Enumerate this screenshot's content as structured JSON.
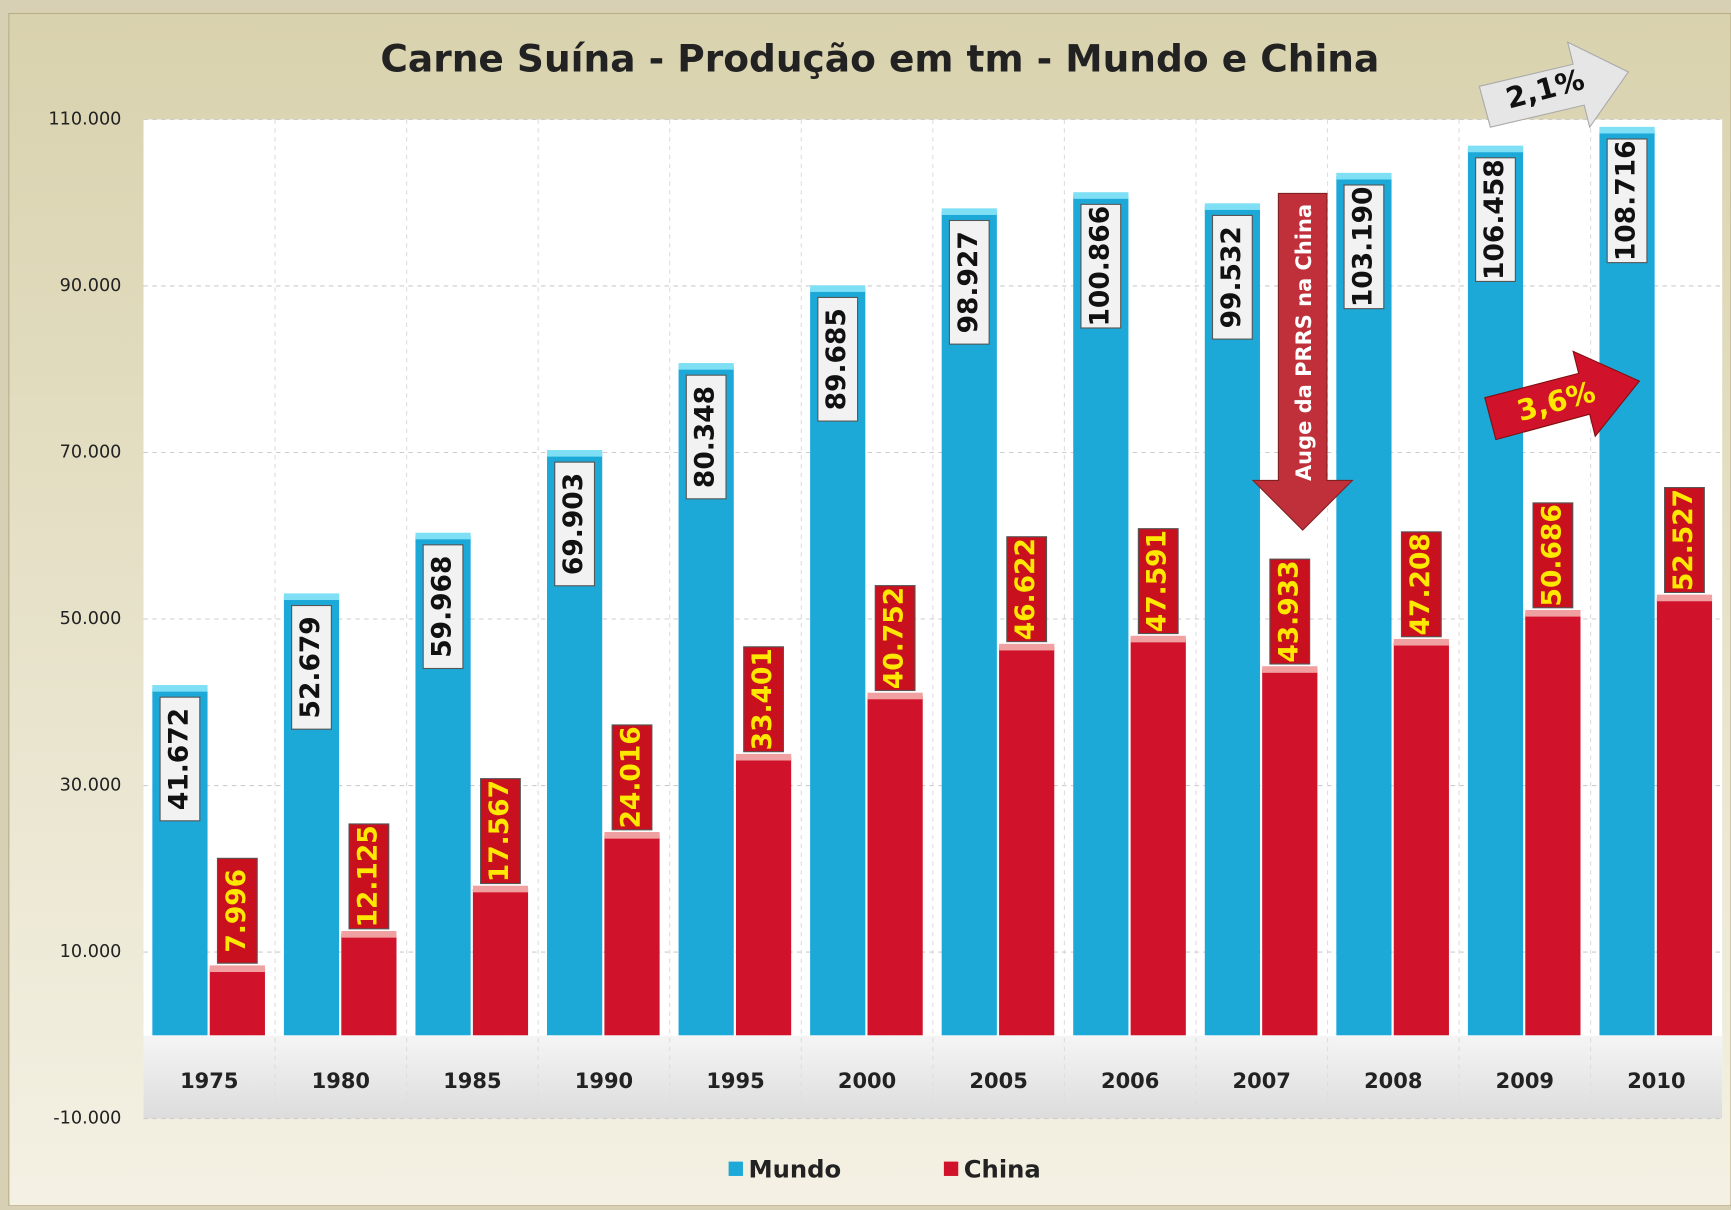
{
  "chart_data": {
    "type": "bar",
    "title": "Carne Suína - Produção em tm - Mundo e China",
    "categories": [
      "1975",
      "1980",
      "1985",
      "1990",
      "1995",
      "2000",
      "2005",
      "2006",
      "2007",
      "2008",
      "2009",
      "2010"
    ],
    "series": [
      {
        "name": "Mundo",
        "color": "#1ca9d8",
        "values": [
          41672,
          52679,
          59968,
          69903,
          80348,
          89685,
          98927,
          100866,
          99532,
          103190,
          106458,
          108716
        ],
        "value_labels": [
          "41.672",
          "52.679",
          "59.968",
          "69.903",
          "80.348",
          "89.685",
          "98.927",
          "100.866",
          "99.532",
          "103.190",
          "106.458",
          "108.716"
        ]
      },
      {
        "name": "China",
        "color": "#d0122a",
        "values": [
          7996,
          12125,
          17567,
          24016,
          33401,
          40752,
          46622,
          47591,
          43933,
          47208,
          50686,
          52527
        ],
        "value_labels": [
          "7.996",
          "12.125",
          "17.567",
          "24.016",
          "33.401",
          "40.752",
          "46.622",
          "47.591",
          "43.933",
          "47.208",
          "50.686",
          "52.527"
        ]
      }
    ],
    "ylim": [
      -10000,
      110000
    ],
    "yticks": [
      {
        "value": -10000,
        "label": "-10.000"
      },
      {
        "value": 10000,
        "label": "10.000"
      },
      {
        "value": 30000,
        "label": "30.000"
      },
      {
        "value": 50000,
        "label": "50.000"
      },
      {
        "value": 70000,
        "label": "70.000"
      },
      {
        "value": 90000,
        "label": "90.000"
      },
      {
        "value": 110000,
        "label": "110.000"
      }
    ],
    "grid": true,
    "legend": "bottom",
    "annotations": [
      "2,1%",
      "3,6%",
      "Auge da PRRS na China"
    ]
  }
}
